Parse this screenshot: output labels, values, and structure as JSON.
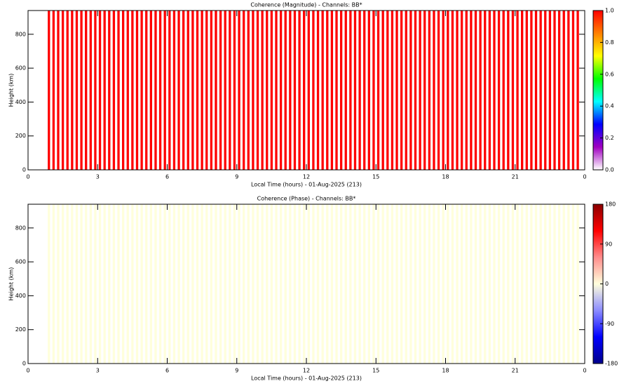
{
  "chart_data": [
    {
      "type": "heatmap",
      "title": "Coherence (Magnitude) - Channels: BB*",
      "xlabel": "Local Time (hours) - 01-Aug-2025 (213)",
      "ylabel": "Height (km)",
      "x": [
        0.9,
        1.1,
        1.3,
        1.5,
        1.7,
        1.9,
        2.1,
        2.3,
        2.5,
        2.7,
        2.9,
        3.1,
        3.3,
        3.5,
        3.7,
        3.9,
        4.1,
        4.3,
        4.5,
        4.7,
        4.9,
        5.1,
        5.3,
        5.5,
        5.7,
        5.9,
        6.1,
        6.3,
        6.5,
        6.7,
        6.9,
        7.1,
        7.3,
        7.5,
        7.7,
        7.9,
        8.1,
        8.3,
        8.5,
        8.7,
        8.9,
        9.1,
        9.3,
        9.5,
        9.7,
        9.9,
        10.1,
        10.3,
        10.5,
        10.7,
        10.9,
        11.1,
        11.3,
        11.5,
        11.7,
        11.9,
        12.1,
        12.3,
        12.5,
        12.7,
        12.9,
        13.1,
        13.3,
        13.5,
        13.7,
        13.9,
        14.1,
        14.3,
        14.5,
        14.7,
        14.9,
        15.1,
        15.3,
        15.5,
        15.7,
        15.9,
        16.1,
        16.3,
        16.5,
        16.7,
        16.9,
        17.1,
        17.3,
        17.5,
        17.7,
        17.9,
        18.1,
        18.3,
        18.5,
        18.7,
        18.9,
        19.1,
        19.3,
        19.5,
        19.7,
        19.9,
        20.1,
        20.3,
        20.5,
        20.7,
        20.9,
        21.1,
        21.3,
        21.5,
        21.7,
        21.9,
        22.1,
        22.3,
        22.5,
        22.7,
        22.9,
        23.1,
        23.3,
        23.5,
        23.7
      ],
      "values": [
        1,
        1,
        1,
        1,
        1,
        1,
        1,
        1,
        1,
        1,
        1,
        1,
        1,
        1,
        1,
        1,
        1,
        1,
        1,
        1,
        1,
        1,
        1,
        1,
        1,
        1,
        1,
        1,
        1,
        1,
        1,
        1,
        1,
        1,
        1,
        1,
        1,
        1,
        1,
        1,
        1,
        1,
        1,
        1,
        1,
        1,
        1,
        1,
        1,
        1,
        1,
        1,
        1,
        1,
        1,
        1,
        1,
        1,
        1,
        1,
        1,
        1,
        1,
        1,
        1,
        1,
        1,
        1,
        1,
        1,
        1,
        1,
        1,
        1,
        1,
        1,
        1,
        1,
        1,
        1,
        1,
        1,
        1,
        1,
        1,
        1,
        1,
        1,
        1,
        1,
        1,
        1,
        1,
        1,
        1,
        1,
        1,
        1,
        1,
        1,
        1,
        1,
        1,
        1,
        1,
        1,
        1,
        1,
        1,
        1,
        1,
        1,
        1,
        1,
        1
      ],
      "xlim": [
        0,
        24
      ],
      "xticks": [
        0,
        3,
        6,
        9,
        12,
        15,
        18,
        21,
        {
          "value": 24,
          "label": "0"
        }
      ],
      "ylim": [
        0,
        940
      ],
      "yticks": [
        0,
        200,
        400,
        600,
        800
      ],
      "colorbar": {
        "lim": [
          0,
          1
        ],
        "ticks": [
          {
            "value": 0,
            "label": "0.0"
          },
          {
            "value": 0.2,
            "label": "0.2"
          },
          {
            "value": 0.4,
            "label": "0.4"
          },
          {
            "value": 0.6,
            "label": "0.6"
          },
          {
            "value": 0.8,
            "label": "0.8"
          },
          {
            "value": 1,
            "label": "1.0"
          }
        ],
        "colors": [
          "#ffffff",
          "#a000c0",
          "#0000ff",
          "#00ffff",
          "#00ff00",
          "#ffff00",
          "#ff8000",
          "#ff0000"
        ]
      }
    },
    {
      "type": "heatmap",
      "title": "Coherence (Phase) - Channels: BB*",
      "xlabel": "Local Time (hours) - 01-Aug-2025 (213)",
      "ylabel": "Height (km)",
      "x": [
        0.9,
        1.1,
        1.3,
        1.5,
        1.7,
        1.9,
        2.1,
        2.3,
        2.5,
        2.7,
        2.9,
        3.1,
        3.3,
        3.5,
        3.7,
        3.9,
        4.1,
        4.3,
        4.5,
        4.7,
        4.9,
        5.1,
        5.3,
        5.5,
        5.7,
        5.9,
        6.1,
        6.3,
        6.5,
        6.7,
        6.9,
        7.1,
        7.3,
        7.5,
        7.7,
        7.9,
        8.1,
        8.3,
        8.5,
        8.7,
        8.9,
        9.1,
        9.3,
        9.5,
        9.7,
        9.9,
        10.1,
        10.3,
        10.5,
        10.7,
        10.9,
        11.1,
        11.3,
        11.5,
        11.7,
        11.9,
        12.1,
        12.3,
        12.5,
        12.7,
        12.9,
        13.1,
        13.3,
        13.5,
        13.7,
        13.9,
        14.1,
        14.3,
        14.5,
        14.7,
        14.9,
        15.1,
        15.3,
        15.5,
        15.7,
        15.9,
        16.1,
        16.3,
        16.5,
        16.7,
        16.9,
        17.1,
        17.3,
        17.5,
        17.7,
        17.9,
        18.1,
        18.3,
        18.5,
        18.7,
        18.9,
        19.1,
        19.3,
        19.5,
        19.7,
        19.9,
        20.1,
        20.3,
        20.5,
        20.7,
        20.9,
        21.1,
        21.3,
        21.5,
        21.7,
        21.9,
        22.1,
        22.3,
        22.5,
        22.7,
        22.9,
        23.1,
        23.3,
        23.5,
        23.7
      ],
      "values": [
        0,
        0,
        0,
        0,
        0,
        0,
        0,
        0,
        0,
        0,
        0,
        0,
        0,
        0,
        0,
        0,
        0,
        0,
        0,
        0,
        0,
        0,
        0,
        0,
        0,
        0,
        0,
        0,
        0,
        0,
        0,
        0,
        0,
        0,
        0,
        0,
        0,
        0,
        0,
        0,
        0,
        0,
        0,
        0,
        0,
        0,
        0,
        0,
        0,
        0,
        0,
        0,
        0,
        0,
        0,
        0,
        0,
        0,
        0,
        0,
        0,
        0,
        0,
        0,
        0,
        0,
        0,
        0,
        0,
        0,
        0,
        0,
        0,
        0,
        0,
        0,
        0,
        0,
        0,
        0,
        0,
        0,
        0,
        0,
        0,
        0,
        0,
        0,
        0,
        0,
        0,
        0,
        0,
        0,
        0,
        0,
        0,
        0,
        0,
        0,
        0,
        0,
        0,
        0,
        0,
        0,
        0,
        0,
        0,
        0,
        0,
        0,
        0,
        0,
        0
      ],
      "xlim": [
        0,
        24
      ],
      "xticks": [
        0,
        3,
        6,
        9,
        12,
        15,
        18,
        21,
        {
          "value": 24,
          "label": "0"
        }
      ],
      "ylim": [
        0,
        940
      ],
      "yticks": [
        0,
        200,
        400,
        600,
        800
      ],
      "colorbar": {
        "lim": [
          -180,
          180
        ],
        "ticks": [
          -180,
          -90,
          0,
          90,
          180
        ],
        "colors": [
          "#00008b",
          "#0000ff",
          "#8c8cff",
          "#ffffdc",
          "#ff8c8c",
          "#ff0000",
          "#8b0000"
        ]
      }
    }
  ]
}
